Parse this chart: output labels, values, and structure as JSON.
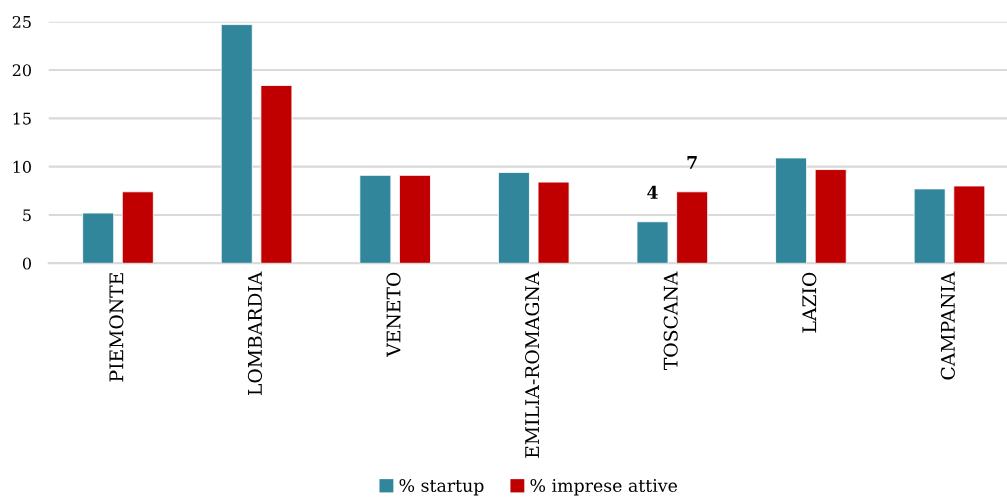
{
  "chart_data": {
    "type": "bar",
    "categories": [
      "PIEMONTE",
      "LOMBARDIA",
      "VENETO",
      "EMILIA-ROMAGNA",
      "TOSCANA",
      "LAZIO",
      "CAMPANIA"
    ],
    "series": [
      {
        "name": "% startup",
        "color": "#31869b",
        "values": [
          5.2,
          24.7,
          9.1,
          9.4,
          4.3,
          10.9,
          7.7
        ],
        "value_labels": [
          null,
          null,
          null,
          null,
          "4",
          null,
          null
        ]
      },
      {
        "name": "% imprese attive",
        "color": "#c00000",
        "values": [
          7.4,
          18.4,
          9.1,
          8.4,
          7.4,
          9.7,
          8.0
        ],
        "value_labels": [
          null,
          null,
          null,
          null,
          "7",
          null,
          null
        ]
      }
    ],
    "ylim": [
      0,
      25
    ],
    "yticks": [
      0,
      5,
      10,
      15,
      20,
      25
    ],
    "grid": "y",
    "legend": "bottom"
  }
}
